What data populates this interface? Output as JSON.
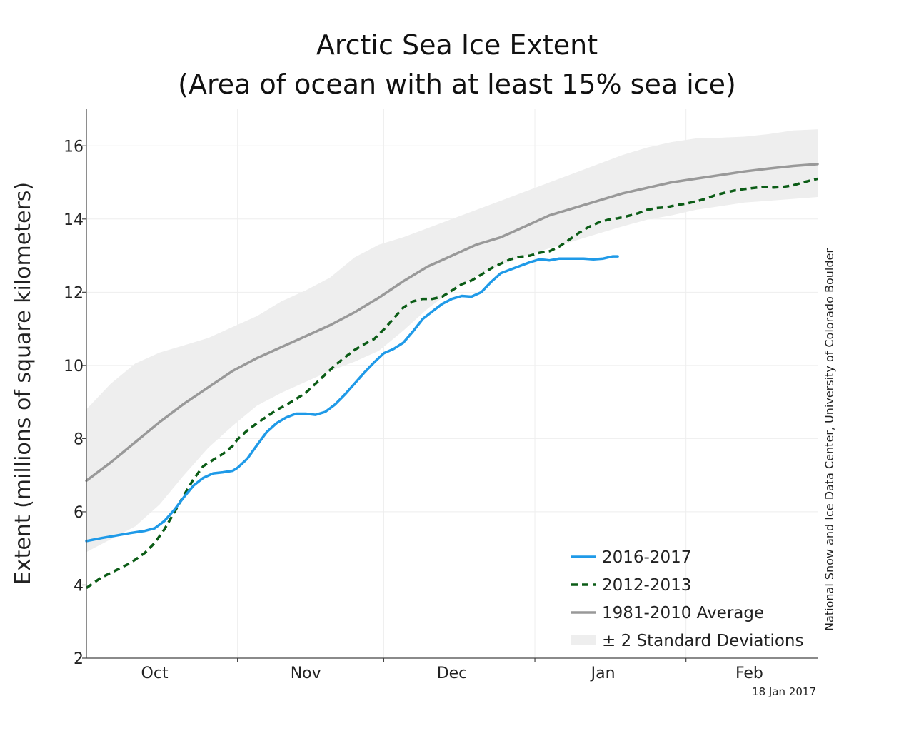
{
  "chart_data": {
    "type": "line",
    "title_line1": "Arctic Sea Ice Extent",
    "title_line2": "(Area of ocean with at least 15% sea ice)",
    "ylabel": "Extent (millions of square kilometers)",
    "xlabel": "",
    "ylim": [
      2,
      17
    ],
    "xlim": [
      0,
      150
    ],
    "yticks": [
      2,
      4,
      6,
      8,
      10,
      12,
      14,
      16
    ],
    "month_boundaries": [
      0,
      31,
      61,
      92,
      123,
      151
    ],
    "month_labels": [
      {
        "label": "Oct",
        "x": 14
      },
      {
        "label": "Nov",
        "x": 45
      },
      {
        "label": "Dec",
        "x": 75
      },
      {
        "label": "Jan",
        "x": 106
      },
      {
        "label": "Feb",
        "x": 136
      }
    ],
    "x_unit": "days since 1 Oct",
    "series": [
      {
        "name": "2016-2017",
        "color": "#1f9ae8",
        "style": "solid",
        "x": [
          0,
          3,
          6,
          9,
          12,
          14,
          16,
          18,
          20,
          22,
          24,
          26,
          28,
          30,
          31,
          33,
          35,
          37,
          39,
          41,
          43,
          45,
          47,
          49,
          51,
          53,
          55,
          57,
          59,
          61,
          63,
          65,
          67,
          69,
          71,
          73,
          75,
          77,
          79,
          81,
          83,
          85,
          87,
          89,
          91,
          93,
          95,
          97,
          98,
          100,
          102,
          104,
          106,
          108,
          109
        ],
        "values": [
          5.2,
          5.28,
          5.35,
          5.42,
          5.48,
          5.55,
          5.75,
          6.05,
          6.4,
          6.72,
          6.93,
          7.05,
          7.08,
          7.12,
          7.2,
          7.45,
          7.82,
          8.18,
          8.42,
          8.58,
          8.68,
          8.68,
          8.65,
          8.73,
          8.93,
          9.2,
          9.5,
          9.8,
          10.08,
          10.33,
          10.45,
          10.62,
          10.93,
          11.27,
          11.48,
          11.68,
          11.82,
          11.9,
          11.88,
          12.0,
          12.28,
          12.52,
          12.62,
          12.72,
          12.82,
          12.9,
          12.87,
          12.92,
          12.92,
          12.92,
          12.92,
          12.9,
          12.92,
          12.98,
          12.98
        ]
      },
      {
        "name": "2012-2013",
        "color": "#0b5c16",
        "style": "dashed",
        "x": [
          0,
          3,
          6,
          9,
          12,
          14,
          16,
          18,
          20,
          22,
          24,
          26,
          28,
          30,
          31,
          33,
          35,
          37,
          39,
          41,
          43,
          45,
          47,
          49,
          51,
          53,
          55,
          57,
          59,
          61,
          63,
          65,
          67,
          69,
          71,
          73,
          75,
          77,
          79,
          81,
          83,
          85,
          87,
          89,
          91,
          93,
          95,
          97,
          99,
          101,
          103,
          105,
          107,
          109,
          111,
          113,
          115,
          117,
          119,
          121,
          123,
          125,
          127,
          129,
          131,
          133,
          135,
          137,
          139,
          141,
          143,
          145,
          147,
          150
        ],
        "values": [
          3.92,
          4.2,
          4.4,
          4.6,
          4.88,
          5.15,
          5.52,
          5.98,
          6.45,
          6.9,
          7.25,
          7.42,
          7.58,
          7.8,
          7.98,
          8.22,
          8.42,
          8.6,
          8.78,
          8.92,
          9.08,
          9.25,
          9.5,
          9.75,
          10.0,
          10.22,
          10.42,
          10.58,
          10.72,
          10.98,
          11.28,
          11.58,
          11.75,
          11.82,
          11.82,
          11.88,
          12.05,
          12.22,
          12.32,
          12.48,
          12.65,
          12.78,
          12.9,
          12.97,
          13.0,
          13.08,
          13.12,
          13.25,
          13.43,
          13.62,
          13.78,
          13.9,
          13.98,
          14.02,
          14.08,
          14.15,
          14.25,
          14.3,
          14.32,
          14.38,
          14.42,
          14.48,
          14.55,
          14.65,
          14.72,
          14.78,
          14.82,
          14.85,
          14.88,
          14.86,
          14.88,
          14.92,
          15.0,
          15.1
        ]
      },
      {
        "name": "1981-2010 Average",
        "color": "#999999",
        "style": "solid",
        "x": [
          0,
          5,
          10,
          15,
          20,
          25,
          30,
          35,
          40,
          45,
          50,
          55,
          60,
          65,
          70,
          75,
          80,
          85,
          90,
          95,
          100,
          105,
          110,
          115,
          120,
          125,
          130,
          135,
          140,
          145,
          150
        ],
        "values": [
          6.85,
          7.35,
          7.9,
          8.45,
          8.95,
          9.4,
          9.85,
          10.2,
          10.5,
          10.8,
          11.1,
          11.45,
          11.85,
          12.3,
          12.7,
          13.0,
          13.3,
          13.5,
          13.8,
          14.1,
          14.3,
          14.5,
          14.7,
          14.85,
          15.0,
          15.1,
          15.2,
          15.3,
          15.38,
          15.45,
          15.5
        ]
      },
      {
        "name": "± 2 Standard Deviations",
        "color": "#eeeeee",
        "style": "band",
        "x": [
          0,
          5,
          10,
          15,
          20,
          25,
          30,
          35,
          40,
          45,
          50,
          55,
          60,
          65,
          70,
          75,
          80,
          85,
          90,
          95,
          100,
          105,
          110,
          115,
          120,
          125,
          130,
          135,
          140,
          145,
          150
        ],
        "upper": [
          8.8,
          9.5,
          10.05,
          10.35,
          10.55,
          10.75,
          11.05,
          11.35,
          11.75,
          12.05,
          12.4,
          12.95,
          13.3,
          13.5,
          13.75,
          14.0,
          14.25,
          14.5,
          14.75,
          15.0,
          15.25,
          15.5,
          15.75,
          15.95,
          16.1,
          16.2,
          16.22,
          16.25,
          16.32,
          16.42,
          16.45
        ],
        "lower": [
          4.9,
          5.25,
          5.6,
          6.2,
          7.0,
          7.75,
          8.35,
          8.9,
          9.25,
          9.55,
          9.85,
          10.1,
          10.4,
          10.95,
          11.55,
          12.05,
          12.45,
          12.75,
          13.0,
          13.2,
          13.4,
          13.6,
          13.8,
          13.98,
          14.1,
          14.25,
          14.35,
          14.45,
          14.5,
          14.55,
          14.6
        ]
      }
    ],
    "legend_position": "bottom-right",
    "grid": true,
    "credit": "National Snow and Ice Data Center, University of Colorado Boulder",
    "date_stamp": "18 Jan 2017"
  }
}
